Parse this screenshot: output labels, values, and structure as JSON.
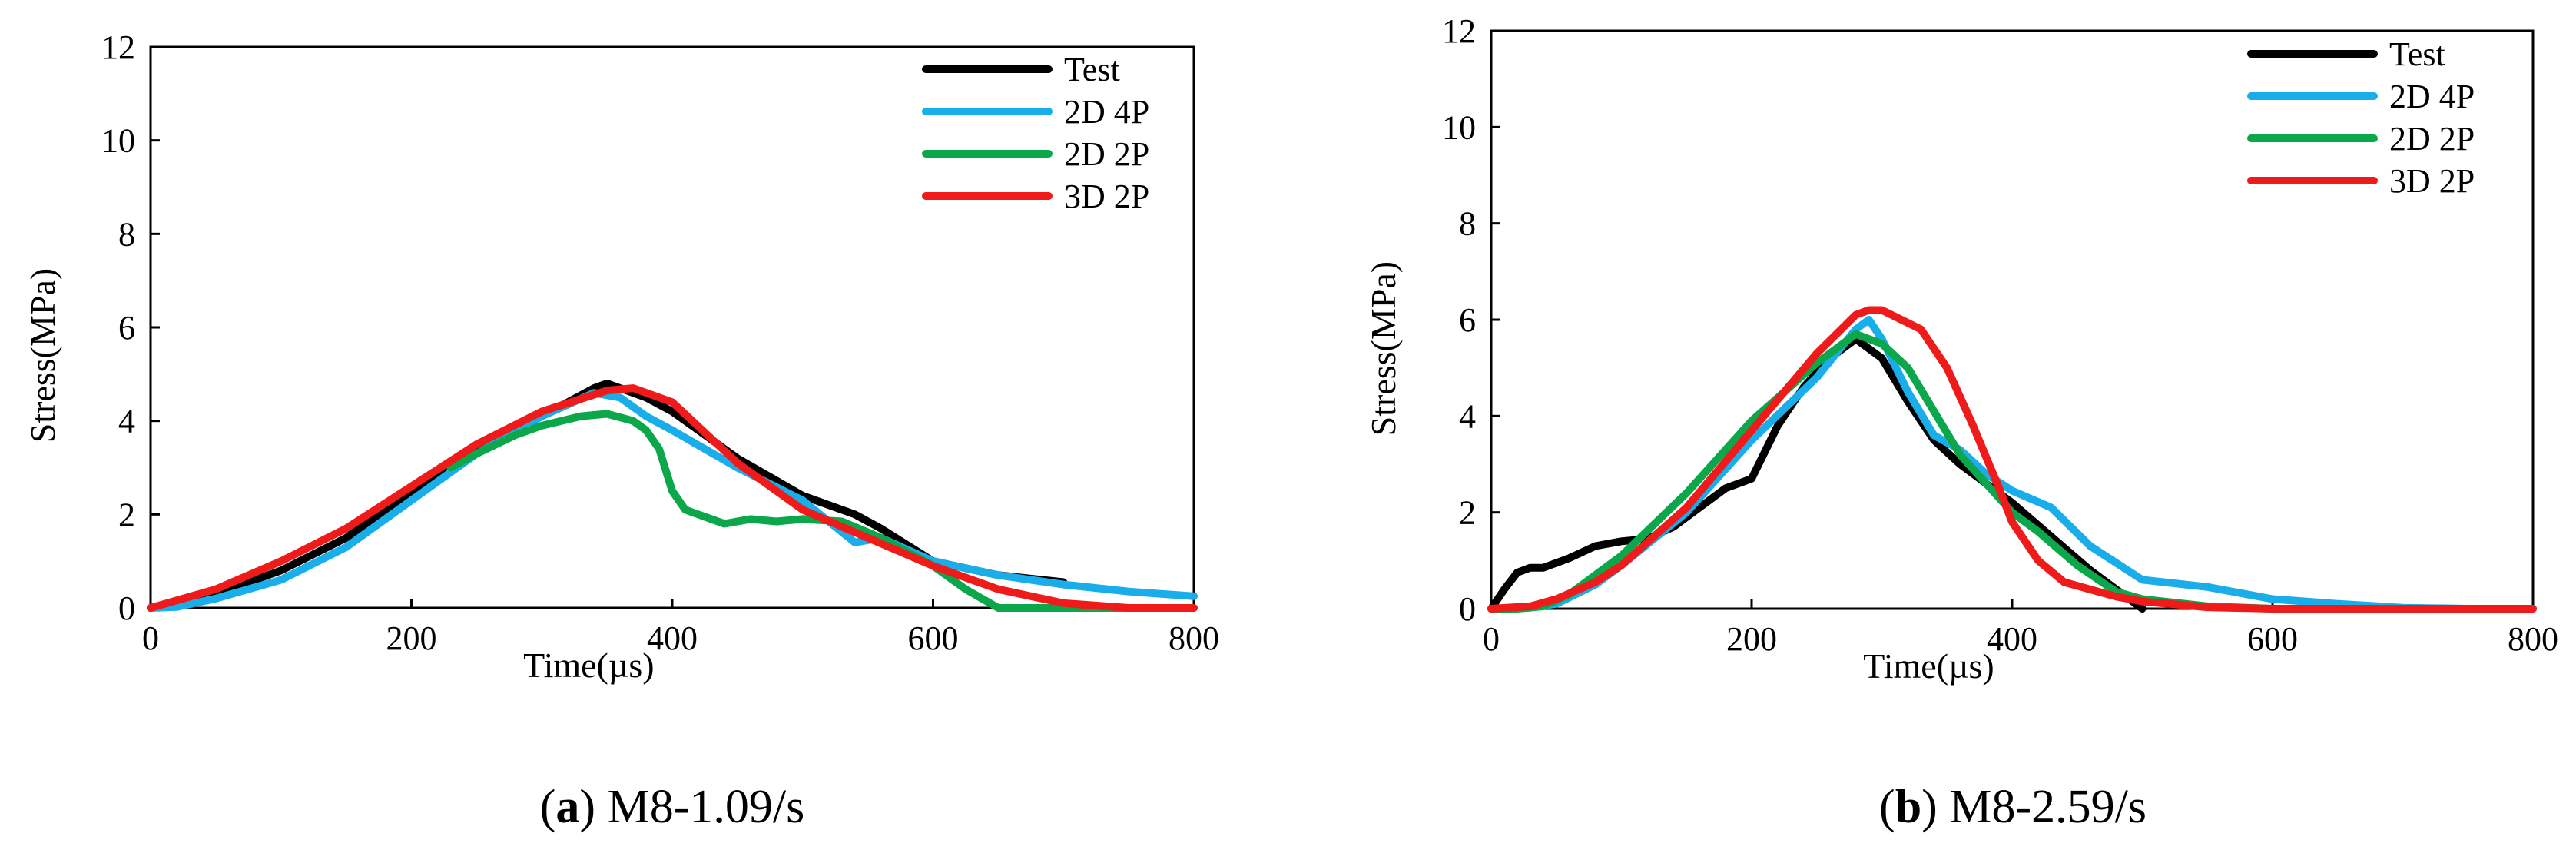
{
  "chart_data": [
    {
      "type": "line",
      "panel_label": "a",
      "caption": "M8-1.09/s",
      "xlabel": "Time(µs)",
      "ylabel": "Stress(MPa)",
      "xlim": [
        0,
        800
      ],
      "ylim": [
        0,
        12
      ],
      "xticks": [
        0,
        200,
        400,
        600,
        800
      ],
      "yticks": [
        0,
        2,
        4,
        6,
        8,
        10,
        12
      ],
      "grid": false,
      "legend_position": "top-right",
      "series": [
        {
          "name": "Test",
          "color": "#000000",
          "x": [
            0,
            25,
            50,
            100,
            150,
            200,
            250,
            300,
            340,
            350,
            360,
            380,
            400,
            450,
            500,
            540,
            560,
            600,
            650,
            700
          ],
          "y": [
            0,
            0.1,
            0.3,
            0.8,
            1.5,
            2.5,
            3.4,
            4.1,
            4.7,
            4.8,
            4.7,
            4.5,
            4.2,
            3.2,
            2.4,
            2.0,
            1.7,
            1.0,
            0.7,
            0.55
          ]
        },
        {
          "name": "2D 4P",
          "color": "#19AEEA",
          "x": [
            0,
            20,
            50,
            100,
            150,
            200,
            250,
            300,
            340,
            360,
            380,
            400,
            450,
            500,
            540,
            560,
            600,
            650,
            700,
            750,
            800
          ],
          "y": [
            0,
            0.02,
            0.2,
            0.6,
            1.3,
            2.3,
            3.3,
            4.1,
            4.6,
            4.5,
            4.1,
            3.8,
            3.0,
            2.3,
            1.4,
            1.5,
            1.0,
            0.7,
            0.5,
            0.35,
            0.25
          ]
        },
        {
          "name": "2D 2P",
          "color": "#0BA74A",
          "x": [
            230,
            250,
            280,
            300,
            330,
            350,
            370,
            380,
            390,
            400,
            410,
            440,
            460,
            480,
            500,
            530,
            560,
            600,
            625,
            650,
            700,
            800
          ],
          "y": [
            3.0,
            3.3,
            3.7,
            3.9,
            4.1,
            4.15,
            4.0,
            3.8,
            3.4,
            2.5,
            2.1,
            1.8,
            1.9,
            1.85,
            1.9,
            1.85,
            1.5,
            0.9,
            0.4,
            0.0,
            0.0,
            0.0
          ]
        },
        {
          "name": "3D 2P",
          "color": "#EF1A1A",
          "x": [
            0,
            50,
            100,
            150,
            200,
            250,
            300,
            350,
            370,
            400,
            450,
            500,
            550,
            600,
            650,
            700,
            750,
            800
          ],
          "y": [
            0,
            0.4,
            1.0,
            1.7,
            2.6,
            3.5,
            4.2,
            4.65,
            4.7,
            4.4,
            3.1,
            2.1,
            1.5,
            0.9,
            0.4,
            0.1,
            0.0,
            0.0
          ]
        }
      ]
    },
    {
      "type": "line",
      "panel_label": "b",
      "caption": "M8-2.59/s",
      "xlabel": "Time(µs)",
      "ylabel": "Stress(MPa)",
      "xlim": [
        0,
        800
      ],
      "ylim": [
        0,
        12
      ],
      "xticks": [
        0,
        200,
        400,
        600,
        800
      ],
      "yticks": [
        0,
        2,
        4,
        6,
        8,
        10,
        12
      ],
      "grid": false,
      "legend_position": "top-right",
      "series": [
        {
          "name": "Test",
          "color": "#000000",
          "x": [
            0,
            10,
            20,
            30,
            40,
            60,
            80,
            100,
            120,
            140,
            160,
            180,
            200,
            220,
            240,
            260,
            280,
            300,
            320,
            340,
            360,
            380,
            400,
            430,
            460,
            490,
            500
          ],
          "y": [
            0,
            0.4,
            0.75,
            0.85,
            0.85,
            1.05,
            1.3,
            1.4,
            1.45,
            1.7,
            2.1,
            2.5,
            2.7,
            3.8,
            4.6,
            5.2,
            5.6,
            5.2,
            4.3,
            3.5,
            3.0,
            2.6,
            2.2,
            1.5,
            0.8,
            0.2,
            0.0
          ]
        },
        {
          "name": "2D 4P",
          "color": "#19AEEA",
          "x": [
            0,
            30,
            50,
            80,
            100,
            150,
            200,
            250,
            280,
            290,
            300,
            320,
            340,
            360,
            380,
            400,
            430,
            460,
            500,
            550,
            600,
            650,
            700,
            750,
            800
          ],
          "y": [
            0,
            0.02,
            0.1,
            0.5,
            0.9,
            2.0,
            3.5,
            4.8,
            5.8,
            6.0,
            5.6,
            4.5,
            3.6,
            3.3,
            2.8,
            2.45,
            2.1,
            1.3,
            0.6,
            0.45,
            0.2,
            0.1,
            0.02,
            0.0,
            0.0
          ]
        },
        {
          "name": "2D 2P",
          "color": "#0BA74A",
          "x": [
            0,
            20,
            40,
            60,
            80,
            100,
            150,
            200,
            250,
            280,
            300,
            320,
            340,
            360,
            380,
            400,
            420,
            450,
            480,
            500,
            550,
            600,
            800
          ],
          "y": [
            0,
            0,
            0.05,
            0.3,
            0.7,
            1.1,
            2.4,
            3.9,
            5.1,
            5.7,
            5.5,
            5.0,
            4.1,
            3.2,
            2.6,
            2.0,
            1.6,
            0.9,
            0.35,
            0.2,
            0.05,
            0.0,
            0.0
          ]
        },
        {
          "name": "3D 2P",
          "color": "#EF1A1A",
          "x": [
            0,
            30,
            50,
            80,
            100,
            150,
            200,
            250,
            280,
            290,
            300,
            330,
            350,
            370,
            390,
            400,
            420,
            440,
            460,
            480,
            500,
            550,
            600,
            800
          ],
          "y": [
            0,
            0.05,
            0.2,
            0.55,
            0.9,
            2.1,
            3.7,
            5.3,
            6.1,
            6.2,
            6.2,
            5.8,
            5.0,
            3.8,
            2.5,
            1.8,
            1.0,
            0.55,
            0.4,
            0.25,
            0.15,
            0.03,
            0.0,
            0.0
          ]
        }
      ]
    }
  ]
}
